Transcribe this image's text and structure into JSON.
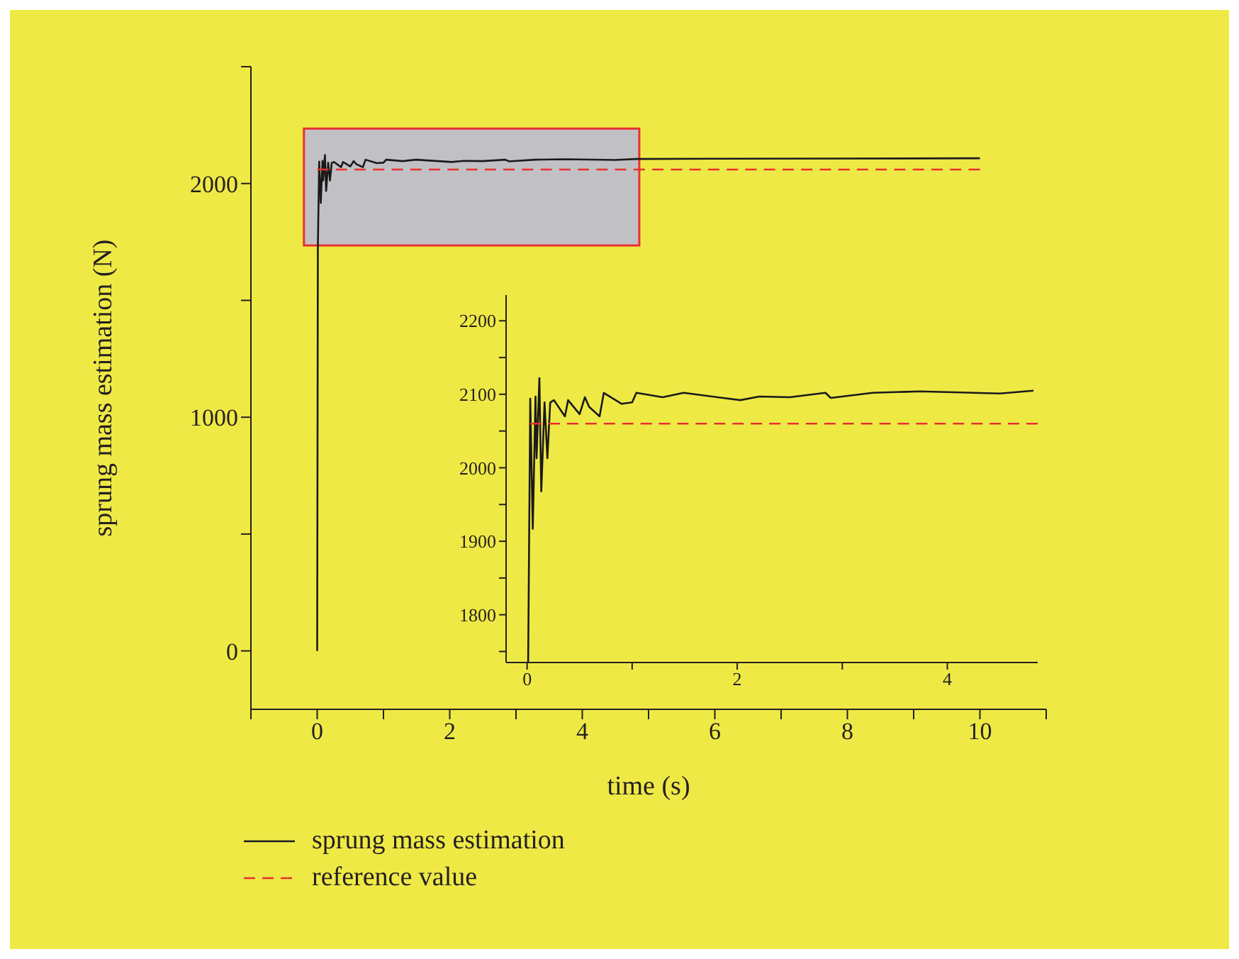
{
  "chart_data": [
    {
      "type": "line",
      "xlabel": "time (s)",
      "ylabel": "sprung mass estimation (N)",
      "xlim": [
        -1,
        11
      ],
      "ylim": [
        -250,
        2500
      ],
      "xticks": [
        {
          "value": -1,
          "label": null
        },
        0,
        {
          "value": 1,
          "label": null
        },
        2,
        {
          "value": 3,
          "label": null
        },
        4,
        {
          "value": 5,
          "label": null
        },
        6,
        {
          "value": 7,
          "label": null
        },
        8,
        {
          "value": 9,
          "label": null
        },
        10,
        {
          "value": 11,
          "label": null
        }
      ],
      "yticks": [
        0,
        {
          "value": 500,
          "label": null
        },
        1000,
        {
          "value": 1500,
          "label": null
        },
        2000,
        {
          "value": 2500,
          "label": null
        }
      ],
      "legend": "bottom left",
      "marker": "none",
      "series": [
        {
          "name": "sprung mass estimation",
          "type": "line",
          "color": "#1a1a1a",
          "line_style": "solid",
          "x": [
            0,
            0.01,
            0.03,
            0.054,
            0.08,
            0.09,
            0.117,
            0.135,
            0.166,
            0.193,
            0.22,
            0.256,
            0.36,
            0.39,
            0.5,
            0.55,
            0.59,
            0.69,
            0.73,
            0.9,
            1.0,
            1.04,
            1.29,
            1.49,
            2.03,
            2.21,
            2.5,
            2.84,
            2.89,
            3.29,
            3.74,
            4.5,
            4.82,
            6,
            8,
            10
          ],
          "values": [
            0,
            1730,
            2094,
            1917,
            2097,
            2013,
            2122,
            1968,
            2089,
            2013,
            2089,
            2092,
            2070,
            2092,
            2073,
            2096,
            2083,
            2070,
            2102,
            2087,
            2089,
            2102,
            2096,
            2102,
            2092,
            2097,
            2096,
            2102,
            2095,
            2102,
            2104,
            2101,
            2105,
            2106,
            2107,
            2108
          ]
        },
        {
          "name": "reference value",
          "type": "line",
          "color": "#e8302f",
          "line_style": "dashed",
          "x": [
            0,
            10
          ],
          "values": [
            2060,
            2060
          ]
        }
      ]
    },
    {
      "type": "line",
      "xlim": [
        -0.2,
        4.86
      ],
      "ylim": [
        1735,
        2235
      ],
      "xticks": [
        0,
        {
          "value": 1,
          "label": null
        },
        2,
        {
          "value": 3,
          "label": null
        },
        4
      ],
      "yticks": [
        {
          "value": 1750,
          "label": null
        },
        1800,
        {
          "value": 1850,
          "label": null
        },
        1900,
        {
          "value": 1950,
          "label": null
        },
        2000,
        {
          "value": 2050,
          "label": null
        },
        2100,
        {
          "value": 2150,
          "label": null
        },
        2200
      ],
      "marker": "none",
      "series": [
        {
          "type": "line",
          "color": "#1a1a1a",
          "line_style": "solid",
          "x": [
            0.01,
            0.03,
            0.054,
            0.08,
            0.09,
            0.117,
            0.135,
            0.166,
            0.193,
            0.22,
            0.256,
            0.36,
            0.39,
            0.5,
            0.55,
            0.59,
            0.69,
            0.73,
            0.9,
            1.0,
            1.04,
            1.29,
            1.49,
            2.03,
            2.21,
            2.5,
            2.84,
            2.89,
            3.29,
            3.74,
            4.5,
            4.82
          ],
          "values": [
            1735,
            2094,
            1917,
            2097,
            2013,
            2122,
            1968,
            2089,
            2013,
            2089,
            2092,
            2070,
            2092,
            2073,
            2096,
            2083,
            2070,
            2102,
            2087,
            2089,
            2102,
            2096,
            2102,
            2092,
            2097,
            2096,
            2102,
            2095,
            2102,
            2104,
            2101,
            2105
          ]
        },
        {
          "type": "line",
          "color": "#e8302f",
          "line_style": "dashed",
          "x": [
            0.03,
            4.86
          ],
          "values": [
            2060,
            2060
          ]
        }
      ]
    }
  ]
}
